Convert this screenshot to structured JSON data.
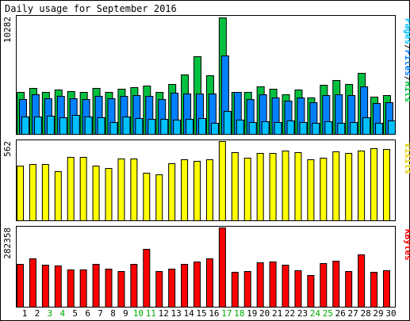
{
  "title": "Daily usage for September 2016",
  "chart_data": [
    {
      "type": "bar",
      "panel": "hits-files-pages",
      "ymax_label": "10282",
      "right_label": [
        "Pages",
        "/",
        "Files",
        "/",
        "Hits"
      ],
      "categories": [
        "1",
        "2",
        "3",
        "4",
        "5",
        "6",
        "7",
        "8",
        "9",
        "10",
        "11",
        "12",
        "13",
        "14",
        "15",
        "16",
        "17",
        "18",
        "19",
        "20",
        "21",
        "22",
        "23",
        "24",
        "25",
        "26",
        "27",
        "28",
        "29",
        "30"
      ],
      "weekend_days": [
        "3",
        "4",
        "10",
        "11",
        "17",
        "18",
        "24",
        "25"
      ],
      "ylim": [
        0,
        10282
      ],
      "series": [
        {
          "name": "Hits",
          "color": "#00c040",
          "values": [
            3650,
            4050,
            3650,
            3900,
            3750,
            3650,
            4050,
            3700,
            3950,
            4100,
            4250,
            3650,
            4350,
            5200,
            6800,
            5150,
            10200,
            3650,
            3650,
            4150,
            3950,
            3450,
            3900,
            3200,
            4300,
            4700,
            4400,
            5350,
            3250,
            3400
          ]
        },
        {
          "name": "Files",
          "color": "#0080ff",
          "values": [
            3050,
            3450,
            3100,
            3300,
            3150,
            3050,
            3350,
            3100,
            3300,
            3400,
            3300,
            3050,
            3600,
            3550,
            3550,
            3550,
            6850,
            3650,
            3050,
            3500,
            3200,
            2950,
            3200,
            2750,
            3400,
            3500,
            3400,
            4150,
            2700,
            2800
          ]
        },
        {
          "name": "Pages",
          "color": "#00c0ff",
          "values": [
            1500,
            1550,
            1600,
            1450,
            1700,
            1500,
            1450,
            1050,
            1500,
            1400,
            1300,
            1300,
            1250,
            1350,
            1400,
            1000,
            2000,
            1250,
            1050,
            1100,
            1050,
            1150,
            1050,
            950,
            1100,
            1000,
            1050,
            1450,
            1000,
            1200
          ]
        }
      ]
    },
    {
      "type": "bar",
      "panel": "visits",
      "ymax_label": "562",
      "right_label": [
        "Visits"
      ],
      "categories": [
        "1",
        "2",
        "3",
        "4",
        "5",
        "6",
        "7",
        "8",
        "9",
        "10",
        "11",
        "12",
        "13",
        "14",
        "15",
        "16",
        "17",
        "18",
        "19",
        "20",
        "21",
        "22",
        "23",
        "24",
        "25",
        "26",
        "27",
        "28",
        "29",
        "30"
      ],
      "ylim": [
        0,
        562
      ],
      "series": [
        {
          "name": "Visits",
          "color": "#ffff00",
          "values": [
            385,
            400,
            400,
            350,
            450,
            450,
            390,
            370,
            440,
            440,
            335,
            325,
            405,
            432,
            420,
            432,
            562,
            485,
            445,
            480,
            475,
            495,
            485,
            435,
            445,
            490,
            480,
            495,
            510,
            505
          ]
        }
      ]
    },
    {
      "type": "bar",
      "panel": "kbytes",
      "ymax_label": "282358",
      "right_label": [
        "KBytes"
      ],
      "categories": [
        "1",
        "2",
        "3",
        "4",
        "5",
        "6",
        "7",
        "8",
        "9",
        "10",
        "11",
        "12",
        "13",
        "14",
        "15",
        "16",
        "17",
        "18",
        "19",
        "20",
        "21",
        "22",
        "23",
        "24",
        "25",
        "26",
        "27",
        "28",
        "29",
        "30"
      ],
      "ylim": [
        0,
        282358
      ],
      "series": [
        {
          "name": "KBytes",
          "color": "#ff0000",
          "values": [
            153000,
            172000,
            151000,
            148000,
            133000,
            133000,
            153000,
            136000,
            126000,
            153000,
            206000,
            128000,
            136000,
            152000,
            162000,
            171000,
            282358,
            124000,
            126000,
            158000,
            160000,
            150000,
            130000,
            114000,
            156000,
            164000,
            127000,
            187000,
            124000,
            130000
          ]
        }
      ]
    }
  ],
  "colors": {
    "weekday_label": "#000000",
    "weekend_label": "#00aa00",
    "border": "#000000",
    "frame_bg": "#ffffff",
    "plot_border": "#808080"
  }
}
